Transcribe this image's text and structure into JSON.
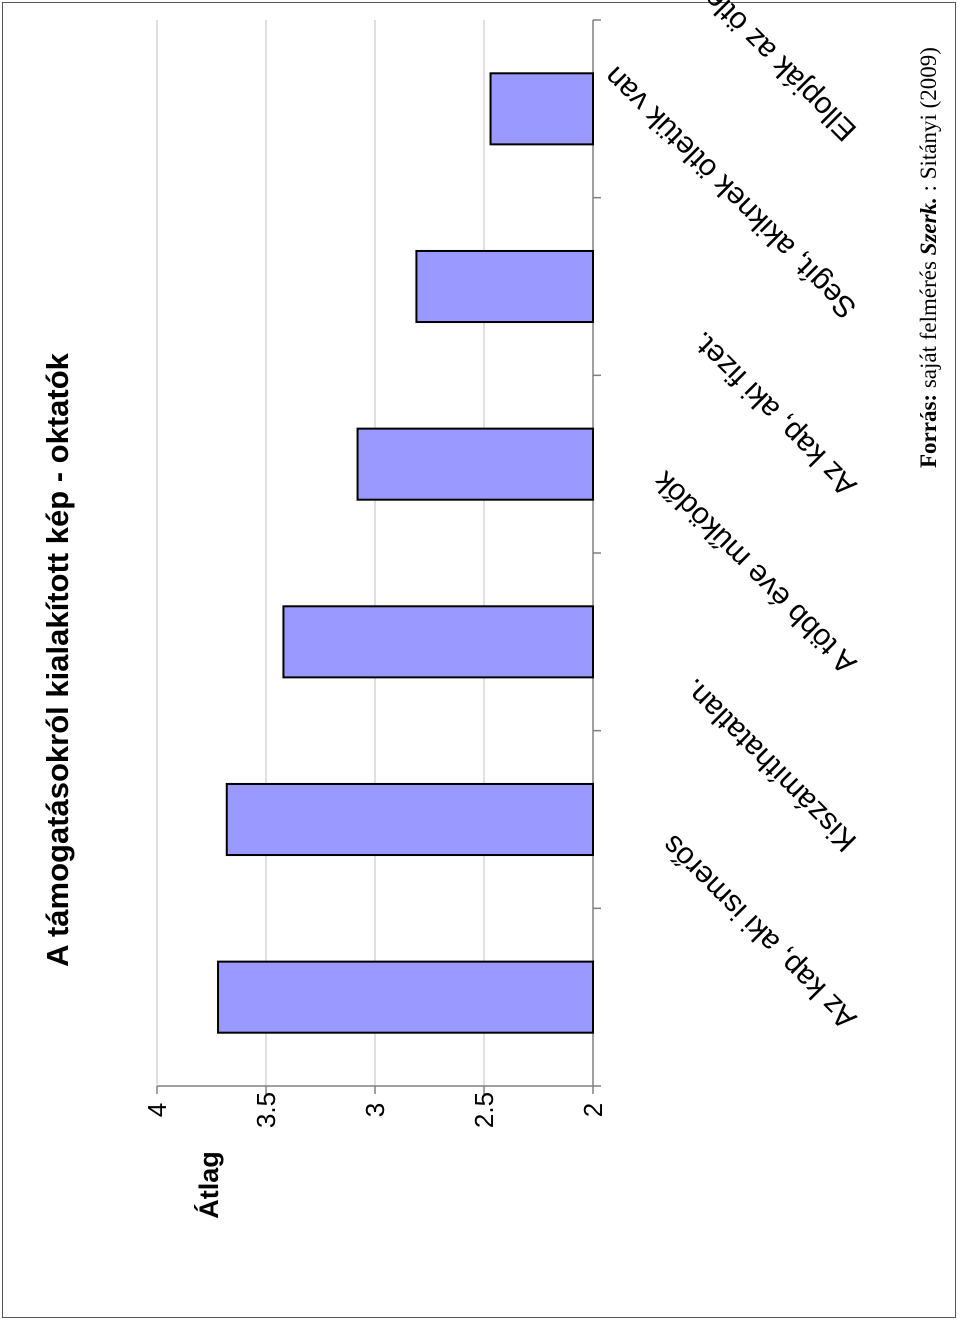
{
  "chart_data": {
    "type": "bar",
    "title": "A támogatásokról kialakított kép - oktatók",
    "ylabel": "Átlag",
    "xlabel": "",
    "ylim": [
      2,
      4
    ],
    "yticks": [
      "2",
      "2.5",
      "3",
      "3.5",
      "4"
    ],
    "grid": true,
    "categories": [
      "Az kap, aki ismerős",
      "Kiszámíthatatlan.",
      "A több éve működők",
      "Az kap, aki fizet.",
      "Segít, akiknek ötletük van",
      "Ellopják az ötleteket."
    ],
    "values": [
      3.72,
      3.68,
      3.42,
      3.08,
      2.81,
      2.47
    ],
    "bar_color": "#9999ff"
  },
  "source": {
    "label": "Forrás:",
    "text": " saját felmérés ",
    "editor": "Szerk.",
    "rest": " : Sitányi (2009)"
  }
}
